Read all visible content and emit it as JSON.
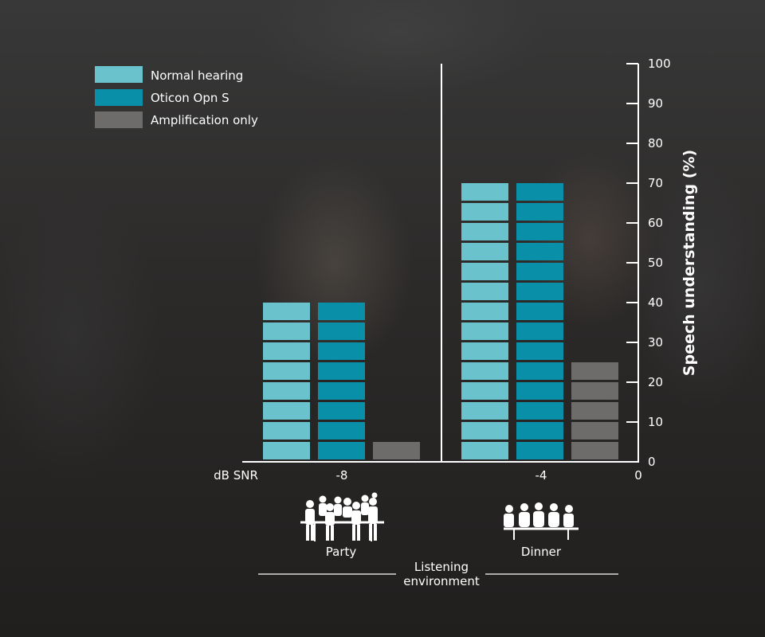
{
  "chart_data": {
    "type": "bar",
    "ylabel": "Speech understanding (%)",
    "ylim": [
      0,
      100
    ],
    "yticks": [
      0,
      10,
      20,
      30,
      40,
      50,
      60,
      70,
      80,
      90,
      100
    ],
    "x_axis_label": "dB SNR",
    "x_ticks": [
      "-8",
      "-4",
      "0"
    ],
    "group_axis_label": [
      "Listening",
      "environment"
    ],
    "categories": [
      "Party",
      "Dinner"
    ],
    "series": [
      {
        "name": "Normal hearing",
        "color": "#6ac2cc",
        "values": [
          40,
          70
        ]
      },
      {
        "name": "Oticon Opn S",
        "color": "#0a8fa8",
        "values": [
          40,
          70
        ]
      },
      {
        "name": "Amplification only",
        "color": "#6d6c6b",
        "values": [
          5,
          25
        ]
      }
    ],
    "segment_step": 5,
    "icons": [
      "party-scene-icon",
      "dinner-table-icon"
    ],
    "legend_position": "top-left"
  }
}
